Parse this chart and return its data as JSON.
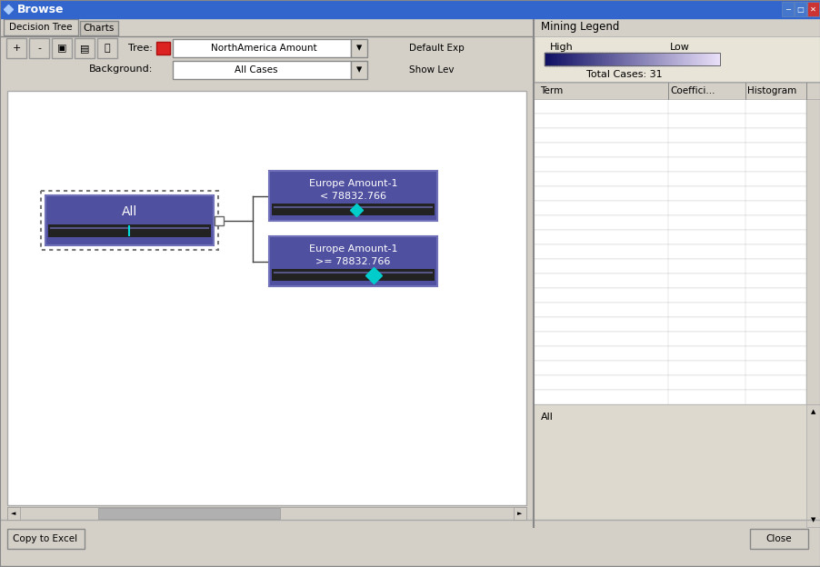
{
  "title": "Browse",
  "title_bar_color": "#3366cc",
  "bg_color": "#d4d0c8",
  "canvas_bg": "#ffffff",
  "tab1": "Decision Tree",
  "tab2": "Charts",
  "tree_label": "Tree:",
  "tree_value": "NorthAmerica Amount",
  "bg_label": "Background:",
  "bg_value": "All Cases",
  "default_exp_label": "Default Exp",
  "show_lev_label": "Show Lev",
  "mining_legend_title": "Mining Legend",
  "high_label": "High",
  "low_label": "Low",
  "total_cases": "Total Cases: 31",
  "col1": "Term",
  "col2": "Coeffici...",
  "col3": "Histogram",
  "all_label": "All",
  "node_all_text": "All",
  "node1_line1": "Europe Amount-1",
  "node1_line2": "< 78832.766",
  "node2_line1": "Europe Amount-1",
  "node2_line2": ">= 78832.766",
  "node_bg_color": "#5050a0",
  "node_border_color": "#7070b8",
  "node_text_color": "#ffffff",
  "copy_btn": "Copy to Excel",
  "close_btn": "Close",
  "panel_right_bg": "#e8e4d8",
  "table_bg": "#ffffff",
  "table_line_color": "#cccccc",
  "bottom_panel_bg": "#ddd9ce",
  "scrollbar_bg": "#d4d0c8",
  "thumb_color": "#b0b0b0"
}
